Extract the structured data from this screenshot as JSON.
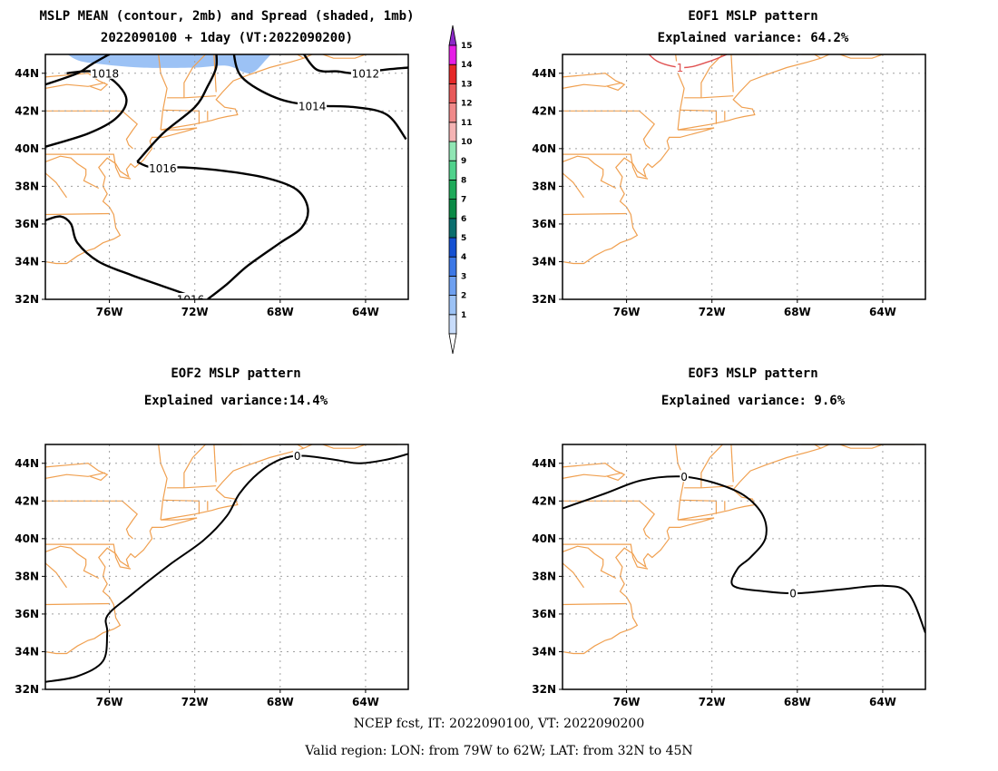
{
  "footer": {
    "line1": "NCEP fcst, IT: 2022090100, VT: 2022090200",
    "line2": "Valid region: LON: from 79W to 62W; LAT: from 32N to 45N"
  },
  "axes": {
    "lon_ticks": [
      "76W",
      "72W",
      "68W",
      "64W"
    ],
    "lat_ticks": [
      "44N",
      "42N",
      "40N",
      "38N",
      "36N",
      "34N",
      "32N"
    ],
    "lon_range": [
      -79,
      -62
    ],
    "lat_range": [
      32,
      45
    ]
  },
  "colors": {
    "coast": "#f0a050",
    "contour": "#000000",
    "spread_fill": "#9cc2f5",
    "eof1_contour": "#e05050",
    "grid": "#a0a0a0"
  },
  "colorbar": {
    "labels": [
      "1",
      "2",
      "3",
      "4",
      "5",
      "6",
      "7",
      "8",
      "9",
      "10",
      "11",
      "12",
      "13",
      "14",
      "15"
    ],
    "colors": [
      "#c8dcfa",
      "#9cc2f5",
      "#6ea0f0",
      "#3c78e6",
      "#1450d2",
      "#0a6e6e",
      "#0a8a46",
      "#1eaa5a",
      "#50d28c",
      "#90e6b4",
      "#f5b4b4",
      "#f08a8a",
      "#e85a5a",
      "#e62828",
      "#e61ee6"
    ],
    "over_color": "#8c28c8"
  },
  "panels": [
    {
      "id": "mean",
      "title1": "MSLP MEAN (contour, 2mb) and Spread (shaded, 1mb)",
      "title2": "2022090100 + 1day (VT:2022090200)",
      "contour_labels": [
        "1018",
        "1012",
        "1014",
        "1016",
        "1016"
      ]
    },
    {
      "id": "eof1",
      "title1": "EOF1 MSLP pattern",
      "title2": "Explained variance: 64.2%",
      "contour_labels": [
        "1"
      ]
    },
    {
      "id": "eof2",
      "title1": "EOF2 MSLP pattern",
      "title2": "Explained variance:14.4%",
      "contour_labels": [
        "0"
      ]
    },
    {
      "id": "eof3",
      "title1": "EOF3 MSLP pattern",
      "title2": "Explained variance: 9.6%",
      "contour_labels": [
        "0",
        "0"
      ]
    }
  ]
}
